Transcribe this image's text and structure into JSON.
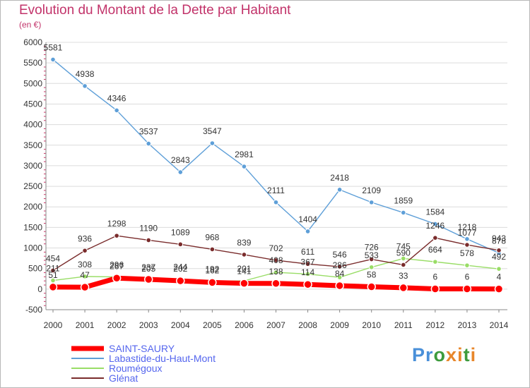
{
  "title": "Evolution du Montant de la Dette par Habitant",
  "unit": "(en €)",
  "logo": "Proxiti",
  "chart_data": {
    "type": "line",
    "title": "Evolution du Montant de la Dette par Habitant",
    "ylabel": "(en €)",
    "xlabel": "",
    "ylim": [
      -500,
      6000
    ],
    "yticks": [
      -500,
      0,
      500,
      1000,
      1500,
      2000,
      2500,
      3000,
      3500,
      4000,
      4500,
      5000,
      5500,
      6000
    ],
    "categories": [
      "2000",
      "2001",
      "2002",
      "2003",
      "2004",
      "2005",
      "2006",
      "2007",
      "2008",
      "2009",
      "2010",
      "2011",
      "2012",
      "2013",
      "2014"
    ],
    "legend_position": "bottom-left",
    "series": [
      {
        "name": "SAINT-SAURY",
        "color": "#ff0000",
        "values": [
          51,
          47,
          267,
          237,
          202,
          162,
          141,
          138,
          114,
          84,
          58,
          33,
          6,
          6,
          4
        ]
      },
      {
        "name": "Labastide-du-Haut-Mont",
        "color": "#5e9fd8",
        "values": [
          5581,
          4938,
          4346,
          3537,
          2843,
          3547,
          2981,
          2111,
          1404,
          2418,
          2109,
          1859,
          1584,
          1218,
          878
        ]
      },
      {
        "name": "Roumégoux",
        "color": "#99dd66",
        "values": [
          211,
          308,
          296,
          205,
          244,
          192,
          201,
          408,
          367,
          286,
          533,
          745,
          664,
          578,
          492
        ]
      },
      {
        "name": "Glénat",
        "color": "#7a2c2c",
        "values": [
          454,
          936,
          1298,
          1190,
          1089,
          968,
          839,
          702,
          611,
          546,
          726,
          590,
          1246,
          1077,
          943
        ]
      }
    ]
  }
}
